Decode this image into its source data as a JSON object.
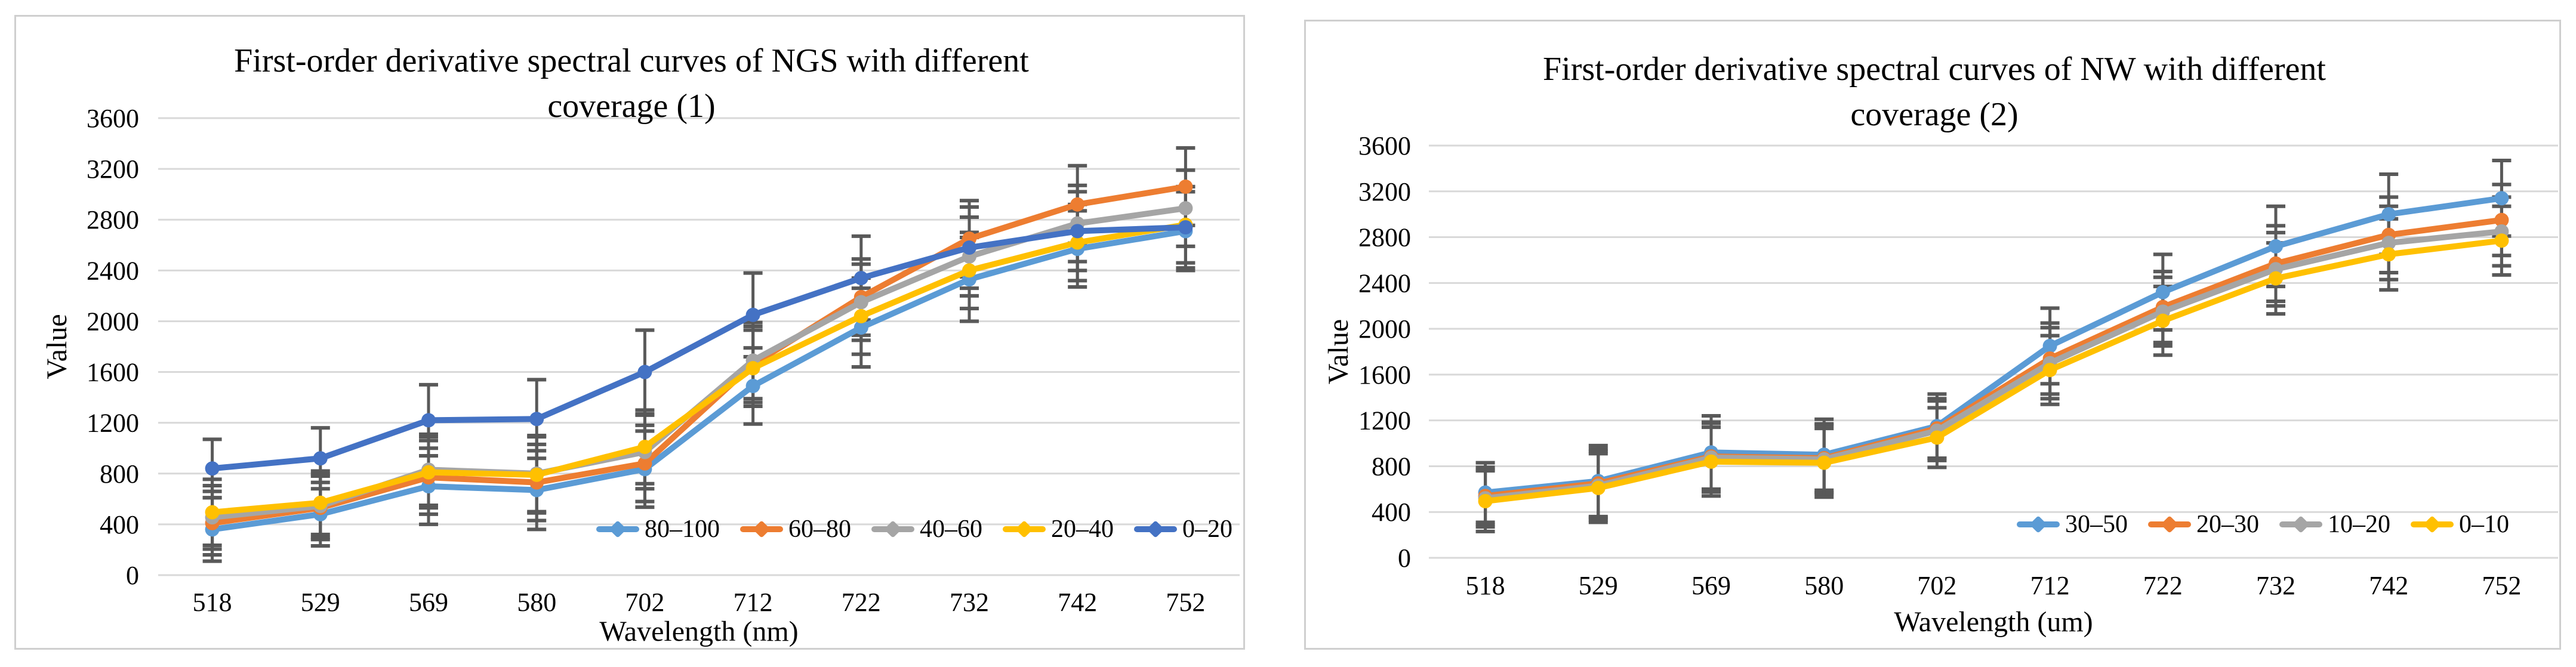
{
  "colors": {
    "background": "#ffffff",
    "panel_border": "#CFCFCF",
    "gridline": "#D9D9D9",
    "error_bar": "#595959",
    "text": "#000000"
  },
  "chart_data": [
    {
      "type": "line",
      "panel_id": "ngs",
      "title_lines": [
        "First-order derivative spectral curves of NGS with different",
        "coverage (1)"
      ],
      "xlabel": "Wavelength (nm)",
      "ylabel": "Value",
      "categories": [
        "518",
        "529",
        "569",
        "580",
        "702",
        "712",
        "722",
        "732",
        "742",
        "752"
      ],
      "y_ticks": [
        3600,
        3200,
        2800,
        2400,
        2000,
        1600,
        1200,
        800,
        400,
        0
      ],
      "ylim": [
        0,
        3600
      ],
      "grid": true,
      "legend_position": "inside-bottom-right",
      "marker": "circle",
      "error_bars": true,
      "series": [
        {
          "name": "80–100",
          "color": "#5B9BD5",
          "values": [
            360,
            480,
            700,
            670,
            835,
            1490,
            1950,
            2330,
            2570,
            2710
          ],
          "errors": [
            250,
            250,
            300,
            310,
            300,
            300,
            310,
            330,
            300,
            310
          ]
        },
        {
          "name": "60–80",
          "color": "#ED7D31",
          "values": [
            410,
            530,
            770,
            730,
            880,
            1660,
            2190,
            2650,
            2920,
            3060
          ],
          "errors": [
            250,
            250,
            290,
            300,
            300,
            300,
            300,
            300,
            305,
            305
          ]
        },
        {
          "name": "40–60",
          "color": "#A5A5A5",
          "values": [
            455,
            545,
            830,
            800,
            970,
            1690,
            2150,
            2510,
            2770,
            2890
          ],
          "errors": [
            250,
            250,
            280,
            300,
            290,
            300,
            300,
            310,
            300,
            300
          ]
        },
        {
          "name": "20–40",
          "color": "#FFC000",
          "values": [
            495,
            570,
            810,
            790,
            1010,
            1630,
            2040,
            2400,
            2620,
            2760
          ],
          "errors": [
            260,
            250,
            280,
            300,
            290,
            300,
            300,
            300,
            300,
            300
          ]
        },
        {
          "name": "0–20",
          "color": "#4472C4",
          "values": [
            840,
            920,
            1220,
            1230,
            1600,
            2050,
            2340,
            2580,
            2710,
            2740
          ],
          "errors": [
            230,
            240,
            280,
            310,
            330,
            330,
            330,
            320,
            310,
            320
          ]
        }
      ]
    },
    {
      "type": "line",
      "panel_id": "nw",
      "title_lines": [
        "First-order derivative spectral curves of NW with different",
        "coverage (2)"
      ],
      "xlabel": "Wavelength (um)",
      "ylabel": "Value",
      "categories": [
        "518",
        "529",
        "569",
        "580",
        "702",
        "712",
        "722",
        "732",
        "742",
        "752"
      ],
      "y_ticks": [
        3600,
        3200,
        2800,
        2400,
        2000,
        1600,
        1200,
        800,
        400,
        0
      ],
      "ylim": [
        0,
        3600
      ],
      "grid": true,
      "legend_position": "inside-bottom-right",
      "marker": "circle",
      "error_bars": true,
      "series": [
        {
          "name": "30–50",
          "color": "#5B9BD5",
          "values": [
            570,
            670,
            920,
            900,
            1150,
            1850,
            2320,
            2720,
            3000,
            3140
          ],
          "errors": [
            260,
            310,
            320,
            310,
            280,
            330,
            330,
            350,
            350,
            330
          ]
        },
        {
          "name": "20–30",
          "color": "#ED7D31",
          "values": [
            540,
            650,
            885,
            870,
            1130,
            1740,
            2190,
            2570,
            2820,
            2950
          ],
          "errors": [
            250,
            300,
            300,
            300,
            260,
            310,
            310,
            330,
            330,
            310
          ]
        },
        {
          "name": "10–20",
          "color": "#A5A5A5",
          "values": [
            520,
            630,
            875,
            860,
            1110,
            1700,
            2150,
            2520,
            2750,
            2850
          ],
          "errors": [
            250,
            300,
            300,
            300,
            260,
            310,
            300,
            320,
            320,
            300
          ]
        },
        {
          "name": "0–10",
          "color": "#FFC000",
          "values": [
            495,
            610,
            840,
            830,
            1050,
            1640,
            2070,
            2440,
            2650,
            2770
          ],
          "errors": [
            265,
            300,
            300,
            300,
            260,
            300,
            300,
            310,
            310,
            300
          ]
        }
      ]
    }
  ]
}
